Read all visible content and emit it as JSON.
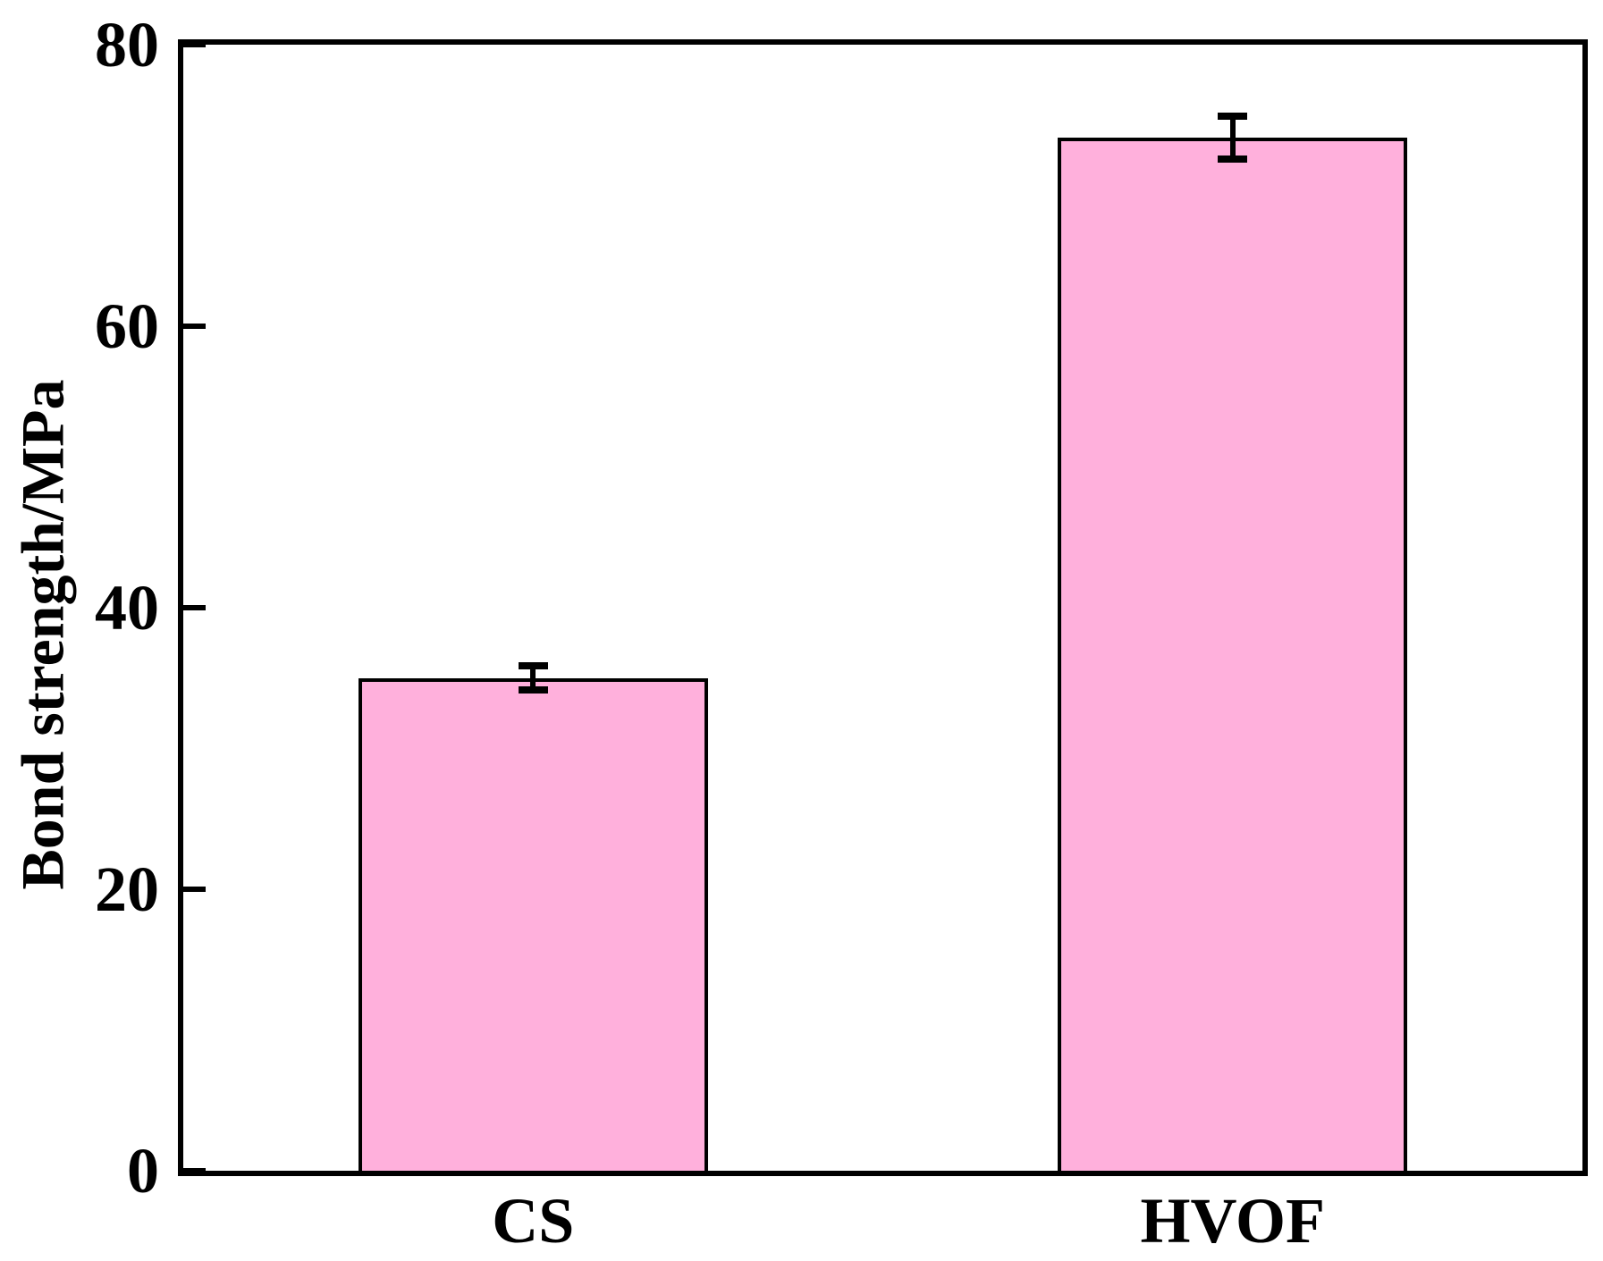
{
  "figure": {
    "background_color": "#ffffff",
    "axis_color": "#000000",
    "text_color": "#000000"
  },
  "chart_data": {
    "type": "bar",
    "title": "",
    "categories": [
      "CS",
      "HVOF"
    ],
    "values": [
      35.0,
      73.4
    ],
    "errors": [
      1.1,
      1.8
    ],
    "series_name": "Bond strength",
    "xlabel": "",
    "ylabel": "Bond strength/MPa",
    "ylim": [
      0,
      80
    ],
    "yticks": [
      0,
      20,
      40,
      60,
      80
    ],
    "grid": false,
    "legend": "none",
    "bar_color": "#FFB0DC",
    "bar_edge_color": "#000000",
    "errorbar_color": "#000000"
  }
}
